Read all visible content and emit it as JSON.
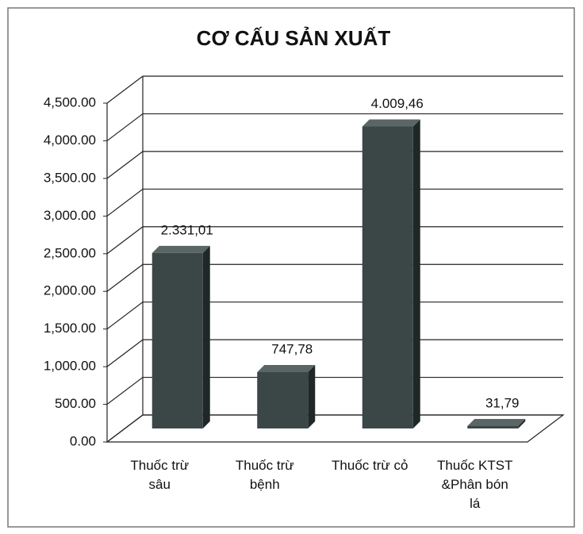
{
  "chart_data": {
    "type": "bar3d",
    "title": "CƠ CẤU SẢN XUẤT",
    "categories": [
      "Thuốc trừ sâu",
      "Thuốc trừ bệnh",
      "Thuốc trừ cỏ",
      "Thuốc KTST &Phân bón lá"
    ],
    "values": [
      2331.01,
      747.78,
      4009.46,
      31.79
    ],
    "value_labels": [
      "2.331,01",
      "747,78",
      "4.009,46",
      "31,79"
    ],
    "color": "#3b4747",
    "ylim": [
      0,
      4500
    ],
    "yticks": [
      {
        "value": 0,
        "label": "0.00"
      },
      {
        "value": 500,
        "label": "500.00"
      },
      {
        "value": 1000,
        "label": "1,000.00"
      },
      {
        "value": 1500,
        "label": "1,500.00"
      },
      {
        "value": 2000,
        "label": "2,000.00"
      },
      {
        "value": 2500,
        "label": "2,500.00"
      },
      {
        "value": 3000,
        "label": "3,000.00"
      },
      {
        "value": 3500,
        "label": "3,500.00"
      },
      {
        "value": 4000,
        "label": "4,000.00"
      },
      {
        "value": 4500,
        "label": "4,500.00"
      }
    ],
    "grid": true
  }
}
